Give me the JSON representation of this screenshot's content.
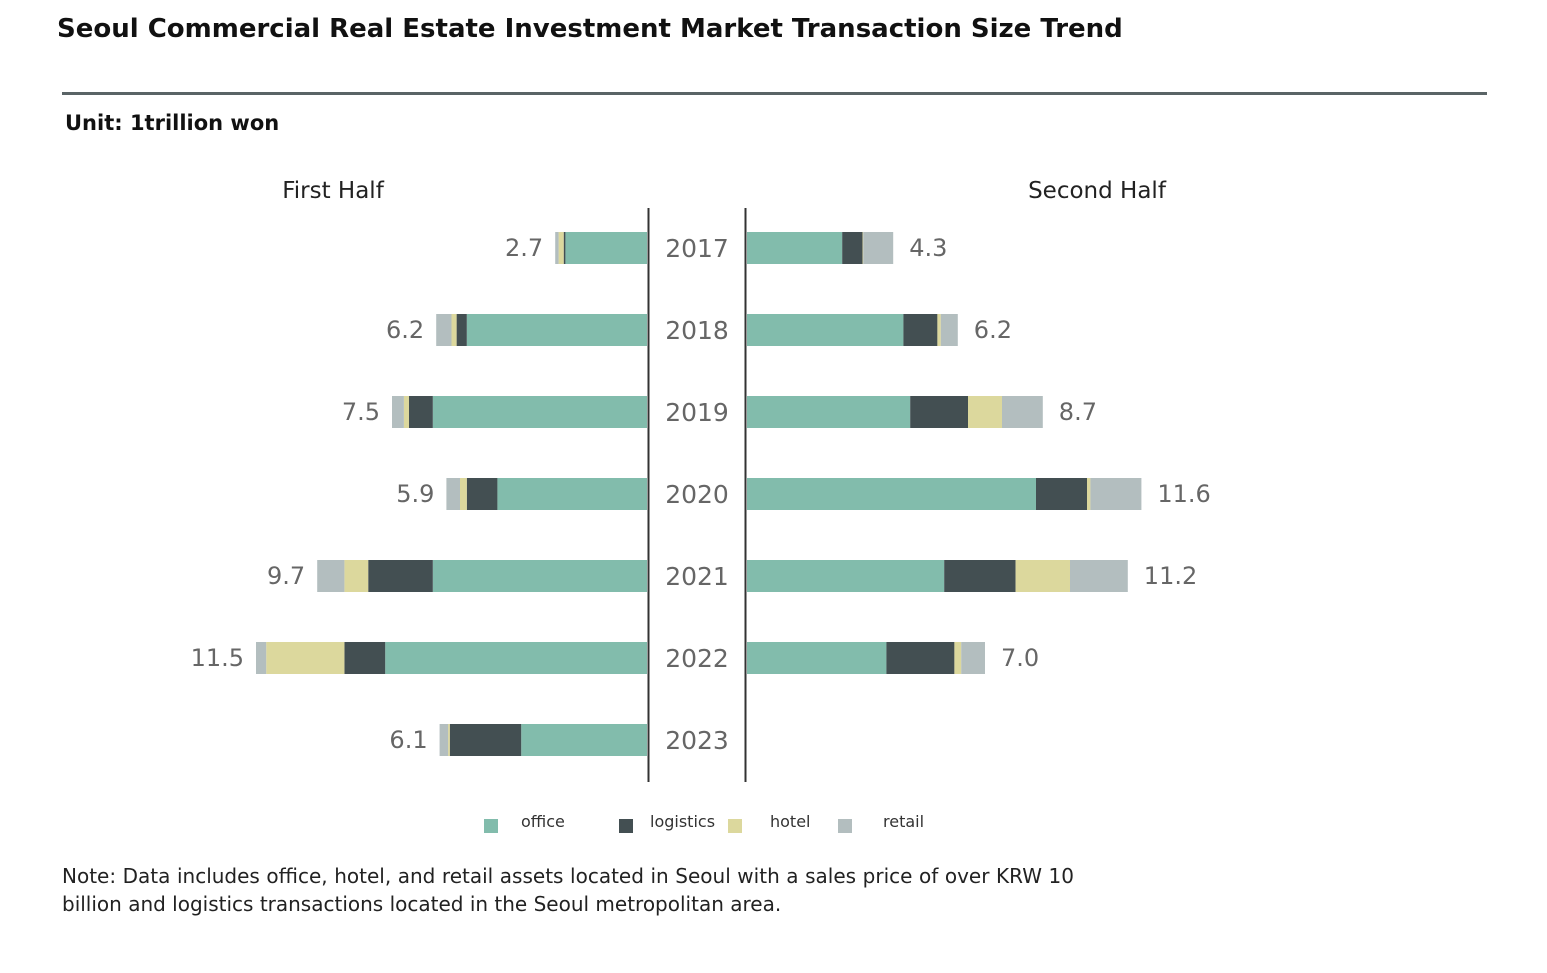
{
  "title": "Seoul Commercial Real Estate Investment Market Transaction Size Trend",
  "unit": "Unit: 1trillion won",
  "note": "Note: Data includes office, hotel, and retail assets located in Seoul with a sales price of over KRW 10 billion and logistics transactions located in the Seoul metropolitan area.",
  "chart_data": {
    "type": "bar",
    "orientation": "horizontal-diverging-stacked",
    "panels": [
      "First Half",
      "Second Half"
    ],
    "categories": [
      "2017",
      "2018",
      "2019",
      "2020",
      "2021",
      "2022",
      "2023"
    ],
    "legend": [
      {
        "name": "office",
        "color": "#82bcac"
      },
      {
        "name": "logistics",
        "color": "#434f52"
      },
      {
        "name": "hotel",
        "color": "#dcd89d"
      },
      {
        "name": "retail",
        "color": "#b3bebf"
      }
    ],
    "first_half": {
      "totals": [
        "2.7",
        "6.2",
        "7.5",
        "5.9",
        "9.7",
        "11.5",
        "6.1"
      ],
      "series": [
        {
          "name": "office",
          "values": [
            2.4,
            5.3,
            6.3,
            4.4,
            6.3,
            7.7,
            3.7
          ]
        },
        {
          "name": "logistics",
          "values": [
            0.05,
            0.3,
            0.7,
            0.9,
            1.9,
            1.2,
            2.1
          ]
        },
        {
          "name": "hotel",
          "values": [
            0.15,
            0.15,
            0.15,
            0.2,
            0.7,
            2.3,
            0.05
          ]
        },
        {
          "name": "retail",
          "values": [
            0.1,
            0.45,
            0.35,
            0.4,
            0.8,
            0.3,
            0.25
          ]
        }
      ]
    },
    "second_half": {
      "totals": [
        "4.3",
        "6.2",
        "8.7",
        "11.6",
        "11.2",
        "7.0",
        null
      ],
      "series": [
        {
          "name": "office",
          "values": [
            2.8,
            4.6,
            4.8,
            8.5,
            5.8,
            4.1,
            null
          ]
        },
        {
          "name": "logistics",
          "values": [
            0.6,
            1.0,
            1.7,
            1.5,
            2.1,
            2.0,
            null
          ]
        },
        {
          "name": "hotel",
          "values": [
            0.02,
            0.1,
            1.0,
            0.1,
            1.6,
            0.2,
            null
          ]
        },
        {
          "name": "retail",
          "values": [
            0.88,
            0.5,
            1.2,
            1.5,
            1.7,
            0.7,
            null
          ]
        }
      ]
    }
  }
}
